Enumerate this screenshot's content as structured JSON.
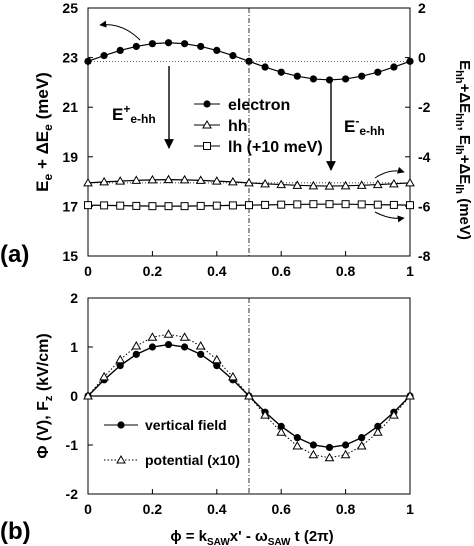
{
  "chart_data": [
    {
      "panel_label": "(a)",
      "type": "line",
      "ylabel_left": "E_e + ΔE_e (meV)",
      "ylabel_right": "E_hh+ΔE_hh, E_lh+ΔE_lh (meV)",
      "xlim": [
        0,
        1
      ],
      "ylim_left": [
        15,
        25
      ],
      "ylim_right": [
        -8,
        2
      ],
      "x_ticks": [
        "0",
        "0.2",
        "0.4",
        "0.6",
        "0.8",
        "1"
      ],
      "y_ticks_left": [
        "15",
        "17",
        "19",
        "21",
        "23",
        "25"
      ],
      "y_ticks_right": [
        "-8",
        "-6",
        "-4",
        "-2",
        "0",
        "2"
      ],
      "x": [
        0,
        0.05,
        0.1,
        0.15,
        0.2,
        0.25,
        0.3,
        0.35,
        0.4,
        0.45,
        0.5,
        0.55,
        0.6,
        0.65,
        0.7,
        0.75,
        0.8,
        0.85,
        0.9,
        0.95,
        1.0
      ],
      "series": [
        {
          "name": "electron",
          "marker": "filled-circle",
          "axis": "left",
          "values": [
            22.85,
            23.08,
            23.29,
            23.45,
            23.56,
            23.6,
            23.56,
            23.45,
            23.29,
            23.08,
            22.85,
            22.62,
            22.41,
            22.25,
            22.14,
            22.1,
            22.14,
            22.25,
            22.41,
            22.62,
            22.85
          ]
        },
        {
          "name": "hh",
          "marker": "open-triangle",
          "axis": "left",
          "values": [
            17.95,
            17.99,
            18.02,
            18.05,
            18.07,
            18.08,
            18.07,
            18.05,
            18.02,
            17.99,
            17.95,
            17.91,
            17.88,
            17.85,
            17.83,
            17.82,
            17.83,
            17.85,
            17.88,
            17.91,
            17.95
          ]
        },
        {
          "name": "lh (+10 meV)",
          "marker": "open-square",
          "axis": "left",
          "values": [
            17.05,
            17.04,
            17.03,
            17.02,
            17.01,
            17.01,
            17.01,
            17.02,
            17.03,
            17.04,
            17.05,
            17.06,
            17.07,
            17.08,
            17.09,
            17.09,
            17.09,
            17.08,
            17.07,
            17.06,
            17.05
          ]
        }
      ],
      "annotations": [
        {
          "text": "E",
          "sup": "+",
          "sub": "e-hh"
        },
        {
          "text": "E",
          "sup": "-",
          "sub": "e-hh"
        }
      ],
      "grid": false,
      "legend": "center"
    },
    {
      "panel_label": "(b)",
      "type": "line",
      "xlabel": "ϕ = k_SAW x' - ω_SAW t (2π)",
      "ylabel": "Φ (V), F_z (kV/cm)",
      "xlim": [
        0,
        1
      ],
      "ylim": [
        -2,
        2
      ],
      "x_ticks": [
        "0",
        "0.2",
        "0.4",
        "0.6",
        "0.8",
        "1"
      ],
      "y_ticks": [
        "-2",
        "-1",
        "0",
        "1",
        "2"
      ],
      "x": [
        0,
        0.05,
        0.1,
        0.15,
        0.2,
        0.25,
        0.3,
        0.35,
        0.4,
        0.45,
        0.5,
        0.55,
        0.6,
        0.65,
        0.7,
        0.75,
        0.8,
        0.85,
        0.9,
        0.95,
        1.0
      ],
      "series": [
        {
          "name": "vertical field",
          "marker": "filled-circle",
          "values": [
            0,
            0.33,
            0.62,
            0.85,
            1.0,
            1.05,
            1.0,
            0.85,
            0.62,
            0.33,
            0,
            -0.33,
            -0.62,
            -0.85,
            -1.0,
            -1.05,
            -1.0,
            -0.85,
            -0.62,
            -0.33,
            0
          ]
        },
        {
          "name": "potential (x10)",
          "marker": "open-triangle",
          "line": "dotted",
          "values": [
            0,
            0.39,
            0.74,
            1.02,
            1.2,
            1.26,
            1.2,
            1.02,
            0.74,
            0.39,
            0,
            -0.39,
            -0.74,
            -1.02,
            -1.2,
            -1.26,
            -1.2,
            -1.02,
            -0.74,
            -0.39,
            0
          ]
        }
      ],
      "grid": false,
      "legend": "bottom-left"
    }
  ]
}
